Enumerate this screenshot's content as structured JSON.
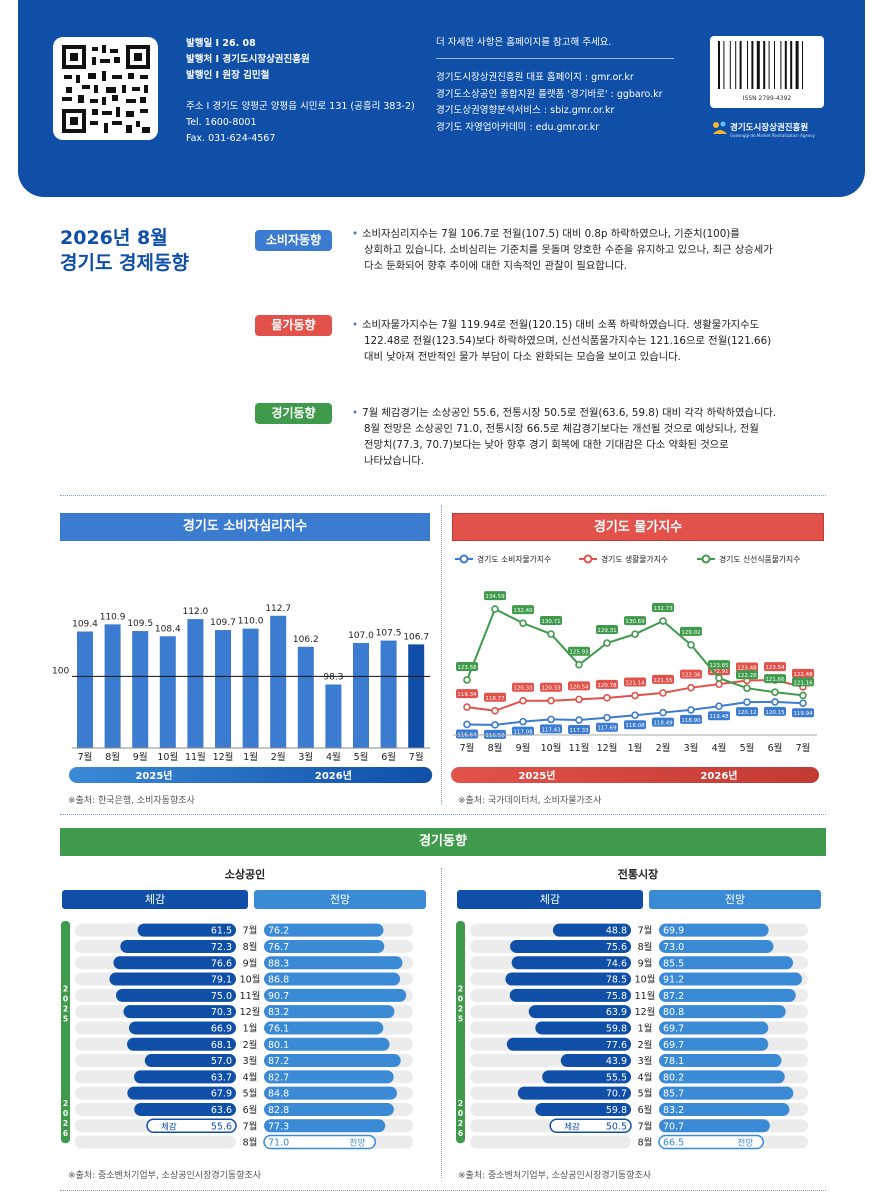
{
  "header": {
    "publish_date": "발행일 I 26. 08",
    "publisher": "발행처 I 경기도시장상권진흥원",
    "issuer": "발행인 I 원장 김민철",
    "address": "주소 I 경기도 양평군 양평읍 시민로 131 (공흥리 383-2)",
    "tel": "Tel. 1600-8001",
    "fax": "Fax. 031-624-4567",
    "note": "더 자세한 사항은 홈페이지를 참고해 주세요.",
    "links": [
      "경기도시장상권진흥원 대표 홈페이지 : gmr.or.kr",
      "경기도소상공인 종합지원 플랫폼 '경기바로' : ggbaro.kr",
      "경기도상권영향분석서비스 : sbiz.gmr.or.kr",
      "경기도 자영업아카데미 : edu.gmr.or.kr"
    ],
    "issn": "ISSN 2799-4392",
    "logo_text": "경기도시장상권진흥원",
    "logo_sub": "Gyeonggi-do Market Revitalization Agency"
  },
  "title_lines": [
    "2026년 8월",
    "경기도 경제동향"
  ],
  "sections": [
    {
      "tag": "소비자동향",
      "color": "#3b7bd0",
      "lines": [
        "소비자심리지수는 7월 106.7로 전월(107.5) 대비 0.8p 하락하였으나, 기준치(100)를",
        "상회하고 있습니다. 소비심리는 기준치를 웃돌며 양호한 수준을 유지하고 있으나, 최근 상승세가",
        "다소 둔화되어 향후 추이에 대한 지속적인 관찰이 필요합니다."
      ]
    },
    {
      "tag": "물가동향",
      "color": "#e2524a",
      "lines": [
        "소비자물가지수는 7월 119.94로 전월(120.15) 대비 소폭 하락하였습니다. 생활물가지수도",
        "122.48로 전월(123.54)보다 하락하였으며, 신선식품물가지수는 121.16으로 전월(121.66)",
        "대비 낮아져 전반적인 물가 부담이 다소 완화되는 모습을 보이고 있습니다."
      ]
    },
    {
      "tag": "경기동향",
      "color": "#3f9a4b",
      "lines": [
        "7월 체감경기는 소상공인 55.6, 전통시장 50.5로 전월(63.6, 59.8) 대비 각각 하락하였습니다.",
        "8월 전망은 소상공인 71.0, 전통시장 66.5로 체감경기보다는 개선될 것으로 예상되나, 전월",
        "전망치(77.3, 70.7)보다는 낮아 향후 경기 회복에 대한 기대감은 다소 약화된 것으로",
        "나타났습니다."
      ]
    }
  ],
  "colors": {
    "blue": "#0f4fa8",
    "red": "#e2524a",
    "green": "#3f9a4b"
  },
  "chart_data": [
    {
      "type": "bar",
      "title": "경기도 소비자심리지수",
      "categories": [
        "7월",
        "8월",
        "9월",
        "10월",
        "11월",
        "12월",
        "1월",
        "2월",
        "3월",
        "4월",
        "5월",
        "6월",
        "7월"
      ],
      "values": [
        109.4,
        110.9,
        109.5,
        108.4,
        112.0,
        109.7,
        110.0,
        112.7,
        106.2,
        98.3,
        107.0,
        107.5,
        106.7
      ],
      "value_labels": [
        "109.4",
        "110.9",
        "109.5",
        "108.4",
        "112.0",
        "109.7",
        "110.0",
        "112.7",
        "106.2",
        "98.3",
        "107.0",
        "107.5",
        "106.7"
      ],
      "reference_line": 100,
      "reference_label": "100",
      "ylim": [
        85,
        116
      ],
      "years": [
        {
          "label": "2025년",
          "from": 0,
          "to": 5
        },
        {
          "label": "2026년",
          "from": 6,
          "to": 12
        }
      ],
      "source": "※출처: 한국은행, 소비자동향조사"
    },
    {
      "type": "line",
      "title": "경기도 물가지수",
      "categories": [
        "7월",
        "8월",
        "9월",
        "10월",
        "11월",
        "12월",
        "1월",
        "2월",
        "3월",
        "4월",
        "5월",
        "6월",
        "7월"
      ],
      "series": [
        {
          "name": "경기도 소비자물가지수",
          "color": "#3b7bd0",
          "values": [
            116.64,
            116.58,
            117.08,
            117.43,
            117.33,
            117.69,
            118.08,
            118.49,
            118.9,
            119.48,
            120.12,
            120.15,
            119.94
          ],
          "labels": [
            "116.64",
            "116.58",
            "117.08",
            "117.43",
            "117.33",
            "117.69",
            "118.08",
            "118.49",
            "118.90",
            "119.48",
            "120.12",
            "120.15",
            "119.94"
          ]
        },
        {
          "name": "경기도 생활물가지수",
          "color": "#e2524a",
          "values": [
            119.34,
            118.77,
            120.33,
            120.33,
            120.54,
            120.78,
            121.14,
            121.55,
            122.36,
            122.91,
            123.48,
            123.54,
            122.48
          ],
          "labels": [
            "119.34",
            "118.77",
            "120.33",
            "120.33",
            "120.54",
            "120.78",
            "121.14",
            "121.55",
            "122.36",
            "122.91",
            "123.48",
            "123.54",
            "122.48"
          ]
        },
        {
          "name": "경기도 신선식품물가지수",
          "color": "#3f9a4b",
          "values": [
            123.56,
            134.59,
            132.4,
            130.71,
            125.93,
            129.31,
            130.69,
            132.73,
            129.02,
            123.85,
            122.28,
            121.66,
            121.16
          ],
          "labels": [
            "123.56",
            "134.59",
            "132.40",
            "130.71",
            "125.93",
            "129.31",
            "130.69",
            "132.73",
            "129.02",
            "123.85",
            "122.28",
            "121.66",
            "121.16"
          ]
        }
      ],
      "ylim": [
        115,
        136
      ],
      "years": [
        {
          "label": "2025년",
          "from": 0,
          "to": 5
        },
        {
          "label": "2026년",
          "from": 6,
          "to": 12
        }
      ],
      "source": "※출처: 국가데이터처, 소비자물가조사"
    },
    {
      "type": "bar",
      "title": "경기동향",
      "subtitle": "소상공인",
      "head_left": "체감",
      "head_right": "전망",
      "months": [
        "7월",
        "8월",
        "9월",
        "10월",
        "11월",
        "12월",
        "1월",
        "2월",
        "3월",
        "4월",
        "5월",
        "6월",
        "7월",
        "8월"
      ],
      "actual": [
        61.5,
        72.3,
        76.6,
        79.1,
        75.0,
        70.3,
        66.9,
        68.1,
        57.0,
        63.7,
        67.9,
        63.6,
        55.6,
        null
      ],
      "actual_labels": [
        "61.5",
        "72.3",
        "76.6",
        "79.1",
        "75.0",
        "70.3",
        "66.9",
        "68.1",
        "57.0",
        "63.7",
        "67.9",
        "63.6",
        "55.6",
        ""
      ],
      "forecast": [
        76.2,
        76.7,
        88.3,
        86.8,
        90.7,
        83.2,
        76.1,
        80.1,
        87.2,
        82.7,
        84.8,
        82.8,
        77.3,
        71.0
      ],
      "forecast_labels": [
        "76.2",
        "76.7",
        "88.3",
        "86.8",
        "90.7",
        "83.2",
        "76.1",
        "80.1",
        "87.2",
        "82.7",
        "84.8",
        "82.8",
        "77.3",
        "71.0"
      ],
      "year_labels": [
        "2025",
        "2026"
      ],
      "tag_actual": "체감",
      "tag_forecast": "전망",
      "source": "※출처: 중소벤처기업부, 소상공인시장경기동향조사"
    },
    {
      "type": "bar",
      "subtitle": "전통시장",
      "head_left": "체감",
      "head_right": "전망",
      "months": [
        "7월",
        "8월",
        "9월",
        "10월",
        "11월",
        "12월",
        "1월",
        "2월",
        "3월",
        "4월",
        "5월",
        "6월",
        "7월",
        "8월"
      ],
      "actual": [
        48.8,
        75.6,
        74.6,
        78.5,
        75.8,
        63.9,
        59.8,
        77.6,
        43.9,
        55.5,
        70.7,
        59.8,
        50.5,
        null
      ],
      "actual_labels": [
        "48.8",
        "75.6",
        "74.6",
        "78.5",
        "75.8",
        "63.9",
        "59.8",
        "77.6",
        "43.9",
        "55.5",
        "70.7",
        "59.8",
        "50.5",
        ""
      ],
      "forecast": [
        69.9,
        73.0,
        85.5,
        91.2,
        87.2,
        80.8,
        69.7,
        69.7,
        78.1,
        80.2,
        85.7,
        83.2,
        70.7,
        66.5
      ],
      "forecast_labels": [
        "69.9",
        "73.0",
        "85.5",
        "91.2",
        "87.2",
        "80.8",
        "69.7",
        "69.7",
        "78.1",
        "80.2",
        "85.7",
        "83.2",
        "70.7",
        "66.5"
      ],
      "year_labels": [
        "2025",
        "2026"
      ],
      "tag_actual": "체감",
      "tag_forecast": "전망",
      "source": "※출처: 중소벤처기업부, 소상공인시장경기동향조사"
    }
  ]
}
